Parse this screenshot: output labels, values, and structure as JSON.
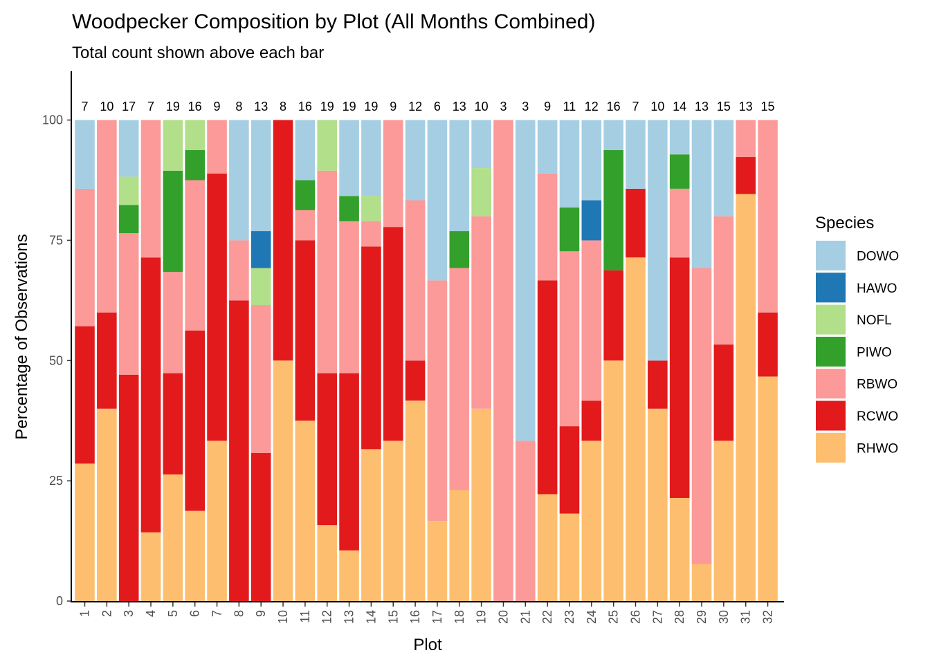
{
  "chart_data": {
    "type": "bar",
    "stacked": true,
    "normalized": true,
    "title": "Woodpecker Composition by Plot (All Months Combined)",
    "subtitle": "Total count shown above each bar",
    "xlabel": "Plot",
    "ylabel": "Percentage of Observations",
    "ylim": [
      0,
      110
    ],
    "yticks": [
      0,
      25,
      50,
      75,
      100
    ],
    "grid": false,
    "legend": {
      "title": "Species",
      "placement": "right"
    },
    "categories": [
      "1",
      "2",
      "3",
      "4",
      "5",
      "6",
      "7",
      "8",
      "9",
      "10",
      "11",
      "12",
      "13",
      "14",
      "15",
      "16",
      "17",
      "18",
      "19",
      "20",
      "21",
      "22",
      "23",
      "24",
      "25",
      "26",
      "27",
      "28",
      "29",
      "30",
      "31",
      "32"
    ],
    "totals": [
      7,
      10,
      17,
      7,
      19,
      16,
      9,
      8,
      13,
      8,
      16,
      19,
      19,
      19,
      9,
      12,
      6,
      13,
      10,
      3,
      3,
      9,
      11,
      12,
      16,
      7,
      10,
      14,
      13,
      15,
      13,
      15
    ],
    "series": [
      {
        "name": "DOWO",
        "color": "#A6CEE3",
        "values": [
          14.29,
          0,
          11.76,
          0,
          0,
          0,
          0,
          25.0,
          23.08,
          0,
          12.5,
          0,
          15.79,
          15.79,
          0,
          16.67,
          33.33,
          23.08,
          10.0,
          0,
          66.67,
          11.11,
          18.18,
          16.67,
          6.25,
          14.29,
          50.0,
          7.14,
          30.77,
          20.0,
          0,
          0
        ]
      },
      {
        "name": "HAWO",
        "color": "#1F78B4",
        "values": [
          0,
          0,
          0,
          0,
          0,
          0,
          0,
          0,
          7.69,
          0,
          0,
          0,
          0,
          0,
          0,
          0,
          0,
          0,
          0,
          0,
          0,
          0,
          0,
          8.33,
          0,
          0,
          0,
          0,
          0,
          0,
          0,
          0
        ]
      },
      {
        "name": "NOFL",
        "color": "#B2DF8A",
        "values": [
          0,
          0,
          5.88,
          0,
          10.53,
          6.25,
          0,
          0,
          7.69,
          0,
          0,
          10.53,
          0,
          5.26,
          0,
          0,
          0,
          0,
          10.0,
          0,
          0,
          0,
          0,
          0,
          0,
          0,
          0,
          0,
          0,
          0,
          0,
          0
        ]
      },
      {
        "name": "PIWO",
        "color": "#33A02C",
        "values": [
          0,
          0,
          5.88,
          0,
          21.05,
          6.25,
          0,
          0,
          0,
          0,
          6.25,
          0,
          5.26,
          0,
          0,
          0,
          0,
          7.69,
          0,
          0,
          0,
          0,
          9.09,
          0,
          25.0,
          0,
          0,
          7.14,
          0,
          0,
          0,
          0
        ]
      },
      {
        "name": "RBWO",
        "color": "#FB9A99",
        "values": [
          28.57,
          40.0,
          29.41,
          28.57,
          21.05,
          31.25,
          11.11,
          12.5,
          30.77,
          0,
          6.25,
          42.11,
          31.58,
          5.26,
          22.22,
          33.33,
          50.0,
          46.15,
          40.0,
          100.0,
          33.33,
          22.22,
          36.36,
          33.33,
          0,
          0,
          0,
          14.29,
          61.54,
          26.67,
          7.69,
          40.0
        ]
      },
      {
        "name": "RCWO",
        "color": "#E31A1C",
        "values": [
          28.57,
          20.0,
          47.06,
          57.14,
          21.05,
          37.5,
          55.56,
          62.5,
          30.77,
          50.0,
          37.5,
          31.58,
          36.84,
          42.11,
          44.44,
          8.33,
          0,
          0,
          0,
          0,
          0,
          44.44,
          18.18,
          8.33,
          18.75,
          14.29,
          10.0,
          50.0,
          0,
          20.0,
          7.69,
          13.33
        ]
      },
      {
        "name": "RHWO",
        "color": "#FDBF6F",
        "values": [
          28.57,
          40.0,
          0,
          14.29,
          26.32,
          18.75,
          33.33,
          0,
          0,
          50.0,
          37.5,
          15.79,
          10.53,
          31.58,
          33.33,
          41.67,
          16.67,
          23.08,
          40.0,
          0,
          0,
          22.22,
          18.18,
          33.33,
          50.0,
          71.43,
          40.0,
          21.43,
          7.69,
          33.33,
          84.62,
          46.67
        ]
      }
    ]
  }
}
